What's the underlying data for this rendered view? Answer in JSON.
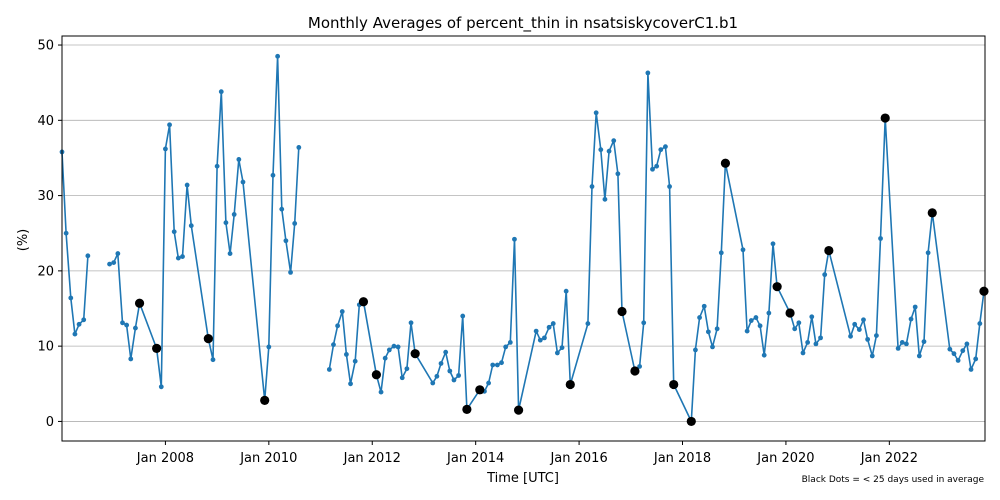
{
  "chart_data": {
    "type": "line",
    "title": "Monthly Averages of percent_thin in nsatsiskycoverC1.b1",
    "xlabel": "Time [UTC]",
    "ylabel": "(%)",
    "note": "Black Dots = < 25 days used in average",
    "xlim": [
      2006.0,
      2023.85
    ],
    "ylim": [
      -2.6,
      51.2
    ],
    "grid": "horizontal",
    "x_ticks": [
      {
        "value": 2008,
        "label": "Jan 2008"
      },
      {
        "value": 2010,
        "label": "Jan 2010"
      },
      {
        "value": 2012,
        "label": "Jan 2012"
      },
      {
        "value": 2014,
        "label": "Jan 2014"
      },
      {
        "value": 2016,
        "label": "Jan 2016"
      },
      {
        "value": 2018,
        "label": "Jan 2018"
      },
      {
        "value": 2020,
        "label": "Jan 2020"
      },
      {
        "value": 2022,
        "label": "Jan 2022"
      }
    ],
    "y_ticks": [
      {
        "value": 0,
        "label": "0"
      },
      {
        "value": 10,
        "label": "10"
      },
      {
        "value": 20,
        "label": "20"
      },
      {
        "value": 30,
        "label": "30"
      },
      {
        "value": 40,
        "label": "40"
      },
      {
        "value": 50,
        "label": "50"
      }
    ],
    "line_color": "#1f77b4",
    "flag_color": "#000000",
    "segments": [
      [
        [
          2006.0,
          35.8
        ],
        [
          2006.08,
          25.0
        ],
        [
          2006.17,
          16.4
        ],
        [
          2006.25,
          11.6
        ],
        [
          2006.33,
          12.9
        ],
        [
          2006.42,
          13.5
        ],
        [
          2006.5,
          22.0
        ]
      ],
      [
        [
          2006.92,
          20.9
        ],
        [
          2007.0,
          21.1
        ],
        [
          2007.08,
          22.3
        ],
        [
          2007.17,
          13.1
        ],
        [
          2007.25,
          12.8
        ],
        [
          2007.33,
          8.3
        ],
        [
          2007.42,
          12.4
        ],
        [
          2007.5,
          15.7
        ],
        [
          2007.83,
          9.7
        ],
        [
          2007.92,
          4.6
        ],
        [
          2008.0,
          36.2
        ],
        [
          2008.08,
          39.4
        ],
        [
          2008.17,
          25.2
        ],
        [
          2008.25,
          21.7
        ],
        [
          2008.33,
          21.9
        ],
        [
          2008.42,
          31.4
        ],
        [
          2008.5,
          26.0
        ],
        [
          2008.83,
          11.0
        ],
        [
          2008.92,
          8.2
        ],
        [
          2009.0,
          33.9
        ],
        [
          2009.08,
          43.8
        ],
        [
          2009.17,
          26.4
        ],
        [
          2009.25,
          22.3
        ],
        [
          2009.33,
          27.5
        ],
        [
          2009.42,
          34.8
        ],
        [
          2009.5,
          31.8
        ],
        [
          2009.92,
          2.8
        ],
        [
          2010.0,
          9.9
        ],
        [
          2010.08,
          32.7
        ],
        [
          2010.17,
          48.5
        ],
        [
          2010.25,
          28.2
        ],
        [
          2010.33,
          24.0
        ],
        [
          2010.42,
          19.8
        ],
        [
          2010.5,
          26.3
        ],
        [
          2010.58,
          36.4
        ]
      ],
      [
        [
          2011.17,
          6.9
        ],
        [
          2011.25,
          10.2
        ],
        [
          2011.33,
          12.7
        ],
        [
          2011.42,
          14.6
        ],
        [
          2011.5,
          8.9
        ],
        [
          2011.58,
          5.0
        ],
        [
          2011.67,
          8.0
        ],
        [
          2011.75,
          15.5
        ],
        [
          2011.83,
          15.9
        ],
        [
          2012.08,
          6.2
        ],
        [
          2012.17,
          3.9
        ],
        [
          2012.25,
          8.4
        ],
        [
          2012.33,
          9.5
        ],
        [
          2012.42,
          10.0
        ],
        [
          2012.5,
          9.9
        ],
        [
          2012.58,
          5.8
        ],
        [
          2012.67,
          7.0
        ],
        [
          2012.75,
          13.1
        ],
        [
          2012.83,
          9.0
        ],
        [
          2013.17,
          5.1
        ],
        [
          2013.25,
          6.0
        ],
        [
          2013.33,
          7.7
        ],
        [
          2013.42,
          9.2
        ],
        [
          2013.5,
          6.7
        ],
        [
          2013.58,
          5.5
        ],
        [
          2013.67,
          6.1
        ],
        [
          2013.75,
          14.0
        ],
        [
          2013.83,
          1.6
        ],
        [
          2014.08,
          4.2
        ],
        [
          2014.17,
          4.0
        ],
        [
          2014.25,
          5.1
        ],
        [
          2014.33,
          7.5
        ],
        [
          2014.42,
          7.5
        ],
        [
          2014.5,
          7.8
        ],
        [
          2014.58,
          9.9
        ],
        [
          2014.67,
          10.5
        ],
        [
          2014.75,
          24.2
        ],
        [
          2014.83,
          1.5
        ],
        [
          2015.17,
          12.0
        ],
        [
          2015.25,
          10.8
        ],
        [
          2015.33,
          11.1
        ],
        [
          2015.42,
          12.5
        ],
        [
          2015.5,
          13.0
        ],
        [
          2015.58,
          9.1
        ],
        [
          2015.67,
          9.8
        ],
        [
          2015.75,
          17.3
        ],
        [
          2015.83,
          4.9
        ],
        [
          2016.17,
          13.0
        ],
        [
          2016.25,
          31.2
        ],
        [
          2016.33,
          41.0
        ],
        [
          2016.42,
          36.1
        ],
        [
          2016.5,
          29.5
        ],
        [
          2016.58,
          35.9
        ],
        [
          2016.67,
          37.3
        ],
        [
          2016.75,
          32.9
        ],
        [
          2016.83,
          14.6
        ],
        [
          2017.08,
          6.7
        ],
        [
          2017.17,
          7.3
        ],
        [
          2017.25,
          13.1
        ],
        [
          2017.33,
          46.3
        ],
        [
          2017.42,
          33.5
        ],
        [
          2017.5,
          33.9
        ],
        [
          2017.58,
          36.1
        ],
        [
          2017.67,
          36.5
        ],
        [
          2017.75,
          31.2
        ],
        [
          2017.83,
          4.9
        ],
        [
          2018.17,
          0.0
        ],
        [
          2018.25,
          9.5
        ],
        [
          2018.33,
          13.8
        ],
        [
          2018.42,
          15.3
        ],
        [
          2018.5,
          11.9
        ],
        [
          2018.58,
          9.9
        ],
        [
          2018.67,
          12.3
        ],
        [
          2018.75,
          22.4
        ],
        [
          2018.83,
          34.3
        ],
        [
          2019.17,
          22.8
        ],
        [
          2019.25,
          12.0
        ],
        [
          2019.33,
          13.4
        ],
        [
          2019.42,
          13.8
        ],
        [
          2019.5,
          12.7
        ],
        [
          2019.58,
          8.8
        ],
        [
          2019.67,
          14.4
        ],
        [
          2019.75,
          23.6
        ],
        [
          2019.83,
          17.9
        ],
        [
          2020.08,
          14.4
        ],
        [
          2020.17,
          12.3
        ],
        [
          2020.25,
          13.1
        ],
        [
          2020.33,
          9.1
        ],
        [
          2020.42,
          10.5
        ],
        [
          2020.5,
          13.9
        ],
        [
          2020.58,
          10.3
        ],
        [
          2020.67,
          11.1
        ],
        [
          2020.75,
          19.5
        ],
        [
          2020.83,
          22.7
        ],
        [
          2021.25,
          11.3
        ],
        [
          2021.33,
          12.9
        ],
        [
          2021.42,
          12.2
        ],
        [
          2021.5,
          13.5
        ],
        [
          2021.58,
          10.9
        ],
        [
          2021.67,
          8.7
        ],
        [
          2021.75,
          11.4
        ],
        [
          2021.83,
          24.3
        ],
        [
          2021.92,
          40.3
        ],
        [
          2022.17,
          9.7
        ],
        [
          2022.25,
          10.5
        ],
        [
          2022.33,
          10.3
        ],
        [
          2022.42,
          13.6
        ],
        [
          2022.5,
          15.2
        ],
        [
          2022.58,
          8.7
        ],
        [
          2022.67,
          10.6
        ],
        [
          2022.75,
          22.4
        ],
        [
          2022.83,
          27.7
        ],
        [
          2023.17,
          9.6
        ],
        [
          2023.25,
          9.0
        ],
        [
          2023.33,
          8.1
        ],
        [
          2023.42,
          9.4
        ],
        [
          2023.5,
          10.3
        ],
        [
          2023.58,
          6.9
        ],
        [
          2023.67,
          8.3
        ],
        [
          2023.75,
          13.0
        ],
        [
          2023.83,
          17.3
        ]
      ]
    ]
  }
}
